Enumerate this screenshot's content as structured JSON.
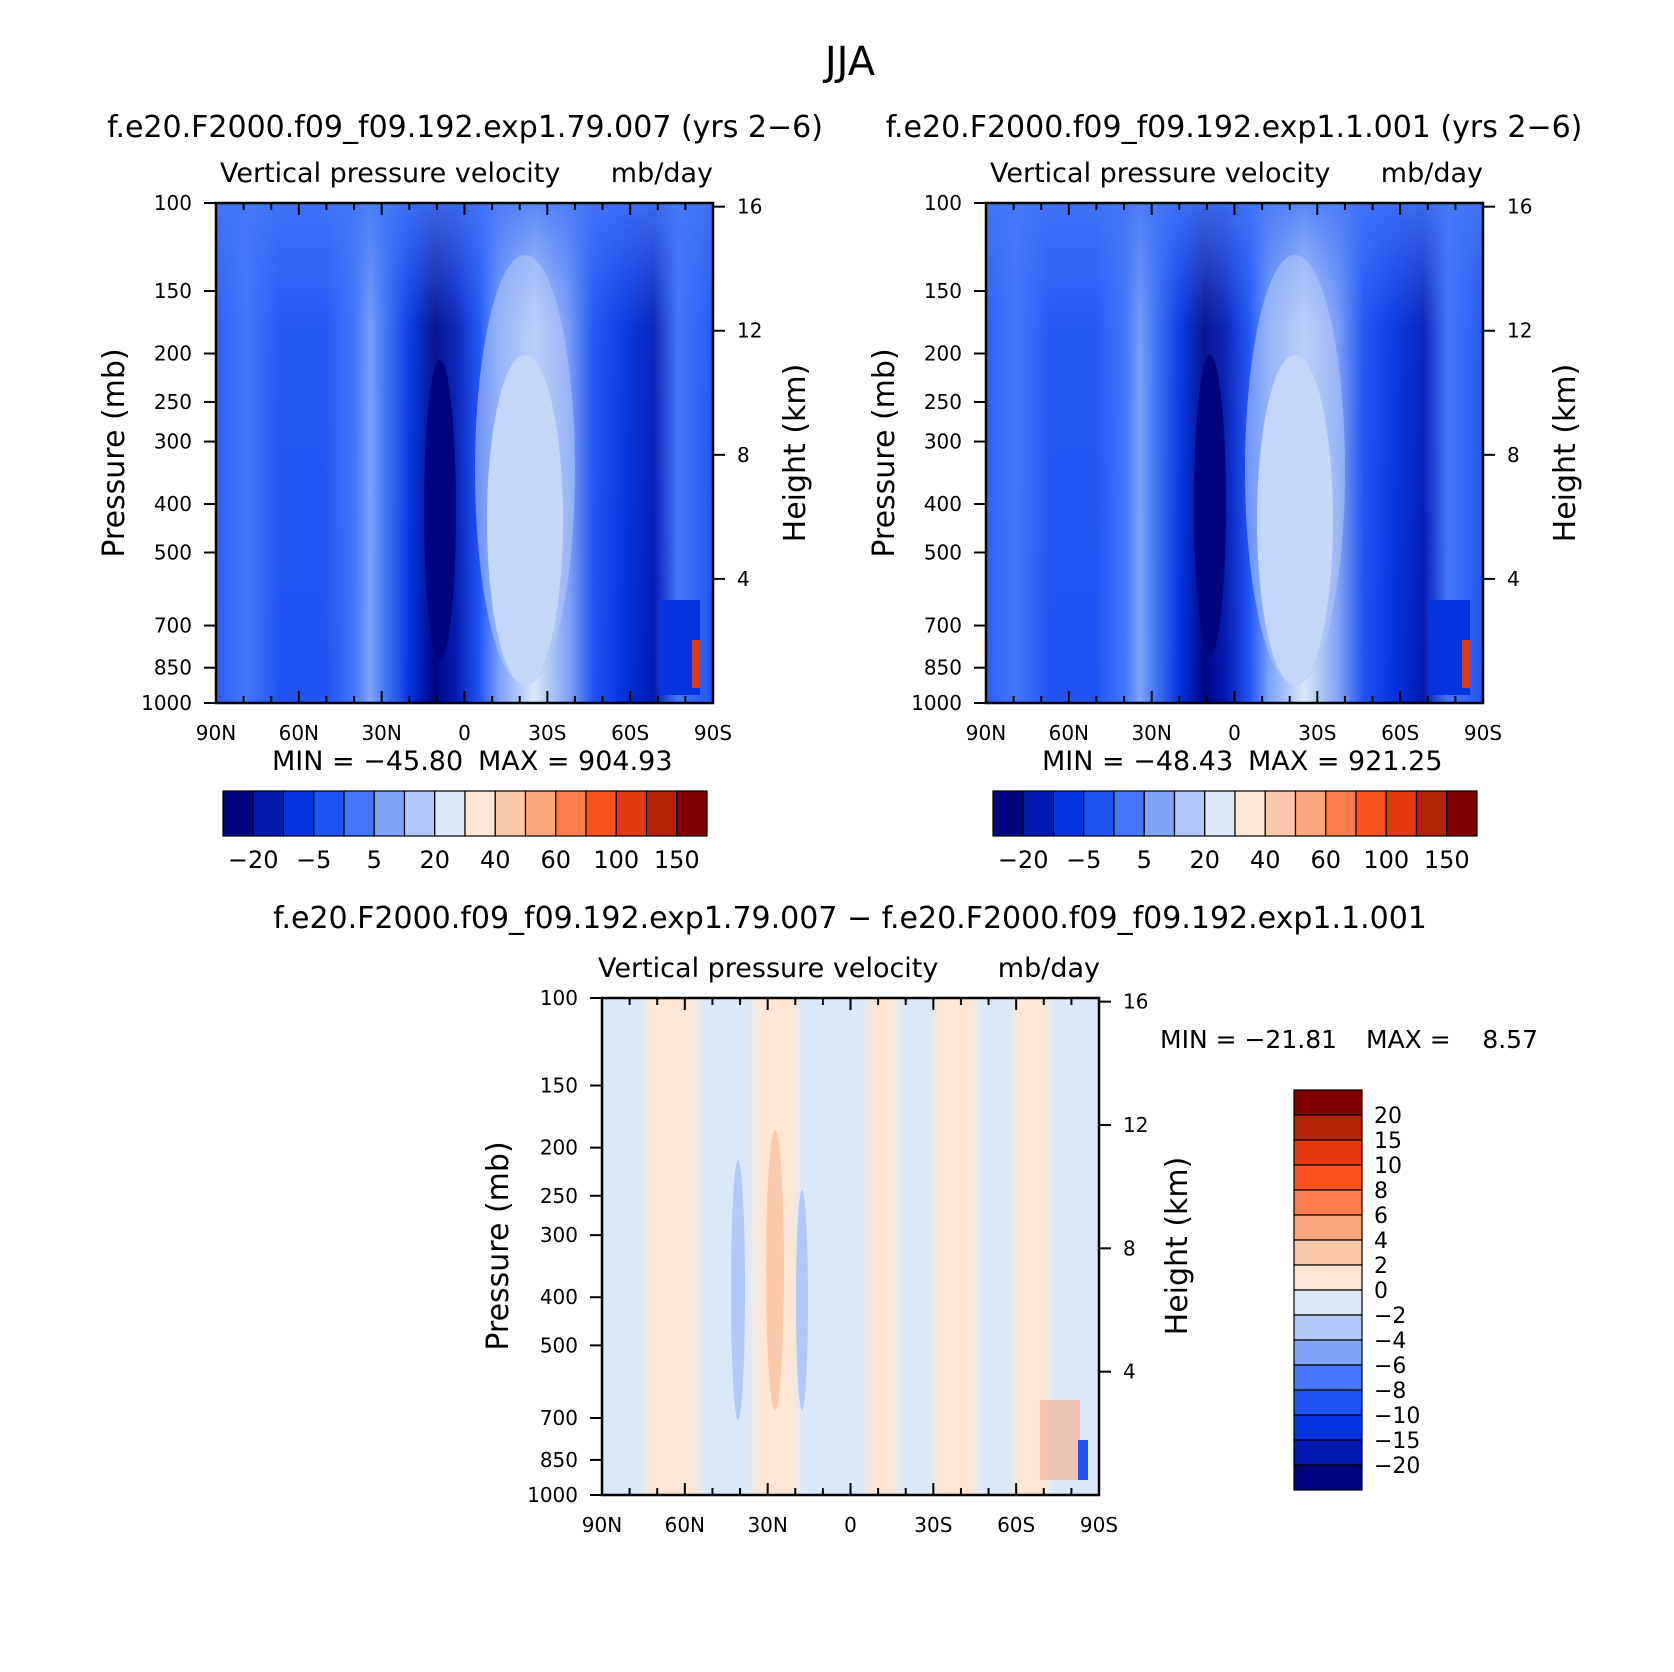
{
  "figure": {
    "title": "JJA"
  },
  "chart_data": [
    {
      "type": "heatmap",
      "panel": "top-left",
      "case_title": "f.e20.F2000.f09_f09.192.exp1.79.007 (yrs 2−6)",
      "variable": "Vertical pressure velocity",
      "units": "mb/day",
      "ylabel": "Pressure (mb)",
      "ylabel_right": "Height (km)",
      "x_ticks": [
        "90N",
        "60N",
        "30N",
        "0",
        "30S",
        "60S",
        "90S"
      ],
      "y_ticks": [
        100,
        150,
        200,
        250,
        300,
        400,
        500,
        700,
        850,
        1000
      ],
      "y_scale": "log",
      "y_inverted": true,
      "ylim": [
        100,
        1000
      ],
      "height_ticks": [
        4,
        8,
        12,
        16
      ],
      "min_label": "MIN = −45.80",
      "max_label": "MAX = 904.93",
      "colorbar": {
        "orientation": "horizontal",
        "tick_labels": [
          "−20",
          "−5",
          "5",
          "20",
          "40",
          "60",
          "100",
          "150"
        ],
        "colors": [
          "#00047f",
          "#0019b0",
          "#0433e0",
          "#1f53f2",
          "#4478f7",
          "#7ea3f7",
          "#b2c8f7",
          "#dae8f9",
          "#fde7d4",
          "#fcc8aa",
          "#fca67c",
          "#fa7c4a",
          "#f8521e",
          "#e23b0d",
          "#b32406",
          "#800000"
        ]
      }
    },
    {
      "type": "heatmap",
      "panel": "top-right",
      "case_title": "f.e20.F2000.f09_f09.192.exp1.1.001 (yrs 2−6)",
      "variable": "Vertical pressure velocity",
      "units": "mb/day",
      "ylabel": "Pressure (mb)",
      "ylabel_right": "Height (km)",
      "x_ticks": [
        "90N",
        "60N",
        "30N",
        "0",
        "30S",
        "60S",
        "90S"
      ],
      "y_ticks": [
        100,
        150,
        200,
        250,
        300,
        400,
        500,
        700,
        850,
        1000
      ],
      "y_scale": "log",
      "y_inverted": true,
      "ylim": [
        100,
        1000
      ],
      "height_ticks": [
        4,
        8,
        12,
        16
      ],
      "min_label": "MIN = −48.43",
      "max_label": "MAX = 921.25",
      "colorbar": {
        "orientation": "horizontal",
        "tick_labels": [
          "−20",
          "−5",
          "5",
          "20",
          "40",
          "60",
          "100",
          "150"
        ],
        "colors": [
          "#00047f",
          "#0019b0",
          "#0433e0",
          "#1f53f2",
          "#4478f7",
          "#7ea3f7",
          "#b2c8f7",
          "#dae8f9",
          "#fde7d4",
          "#fcc8aa",
          "#fca67c",
          "#fa7c4a",
          "#f8521e",
          "#e23b0d",
          "#b32406",
          "#800000"
        ]
      }
    },
    {
      "type": "heatmap",
      "panel": "bottom-difference",
      "case_title": "f.e20.F2000.f09_f09.192.exp1.79.007 − f.e20.F2000.f09_f09.192.exp1.1.001",
      "variable": "Vertical pressure velocity",
      "units": "mb/day",
      "ylabel": "Pressure (mb)",
      "ylabel_right": "Height (km)",
      "x_ticks": [
        "90N",
        "60N",
        "30N",
        "0",
        "30S",
        "60S",
        "90S"
      ],
      "y_ticks": [
        100,
        150,
        200,
        250,
        300,
        400,
        500,
        700,
        850,
        1000
      ],
      "y_scale": "log",
      "y_inverted": true,
      "ylim": [
        100,
        1000
      ],
      "height_ticks": [
        4,
        8,
        12,
        16
      ],
      "min_label": "MIN = −21.81",
      "max_label": "MAX =",
      "max_value": "8.57",
      "colorbar": {
        "orientation": "vertical",
        "tick_labels": [
          "20",
          "15",
          "10",
          "8",
          "6",
          "4",
          "2",
          "0",
          "−2",
          "−4",
          "−6",
          "−8",
          "−10",
          "−15",
          "−20"
        ],
        "colors": [
          "#800000",
          "#b32406",
          "#e23b0d",
          "#f8521e",
          "#fa7c4a",
          "#fca67c",
          "#fcc8aa",
          "#fde7d4",
          "#dae8f9",
          "#b2c8f7",
          "#7ea3f7",
          "#4478f7",
          "#1f53f2",
          "#0433e0",
          "#0019b0",
          "#00047f"
        ]
      }
    }
  ]
}
